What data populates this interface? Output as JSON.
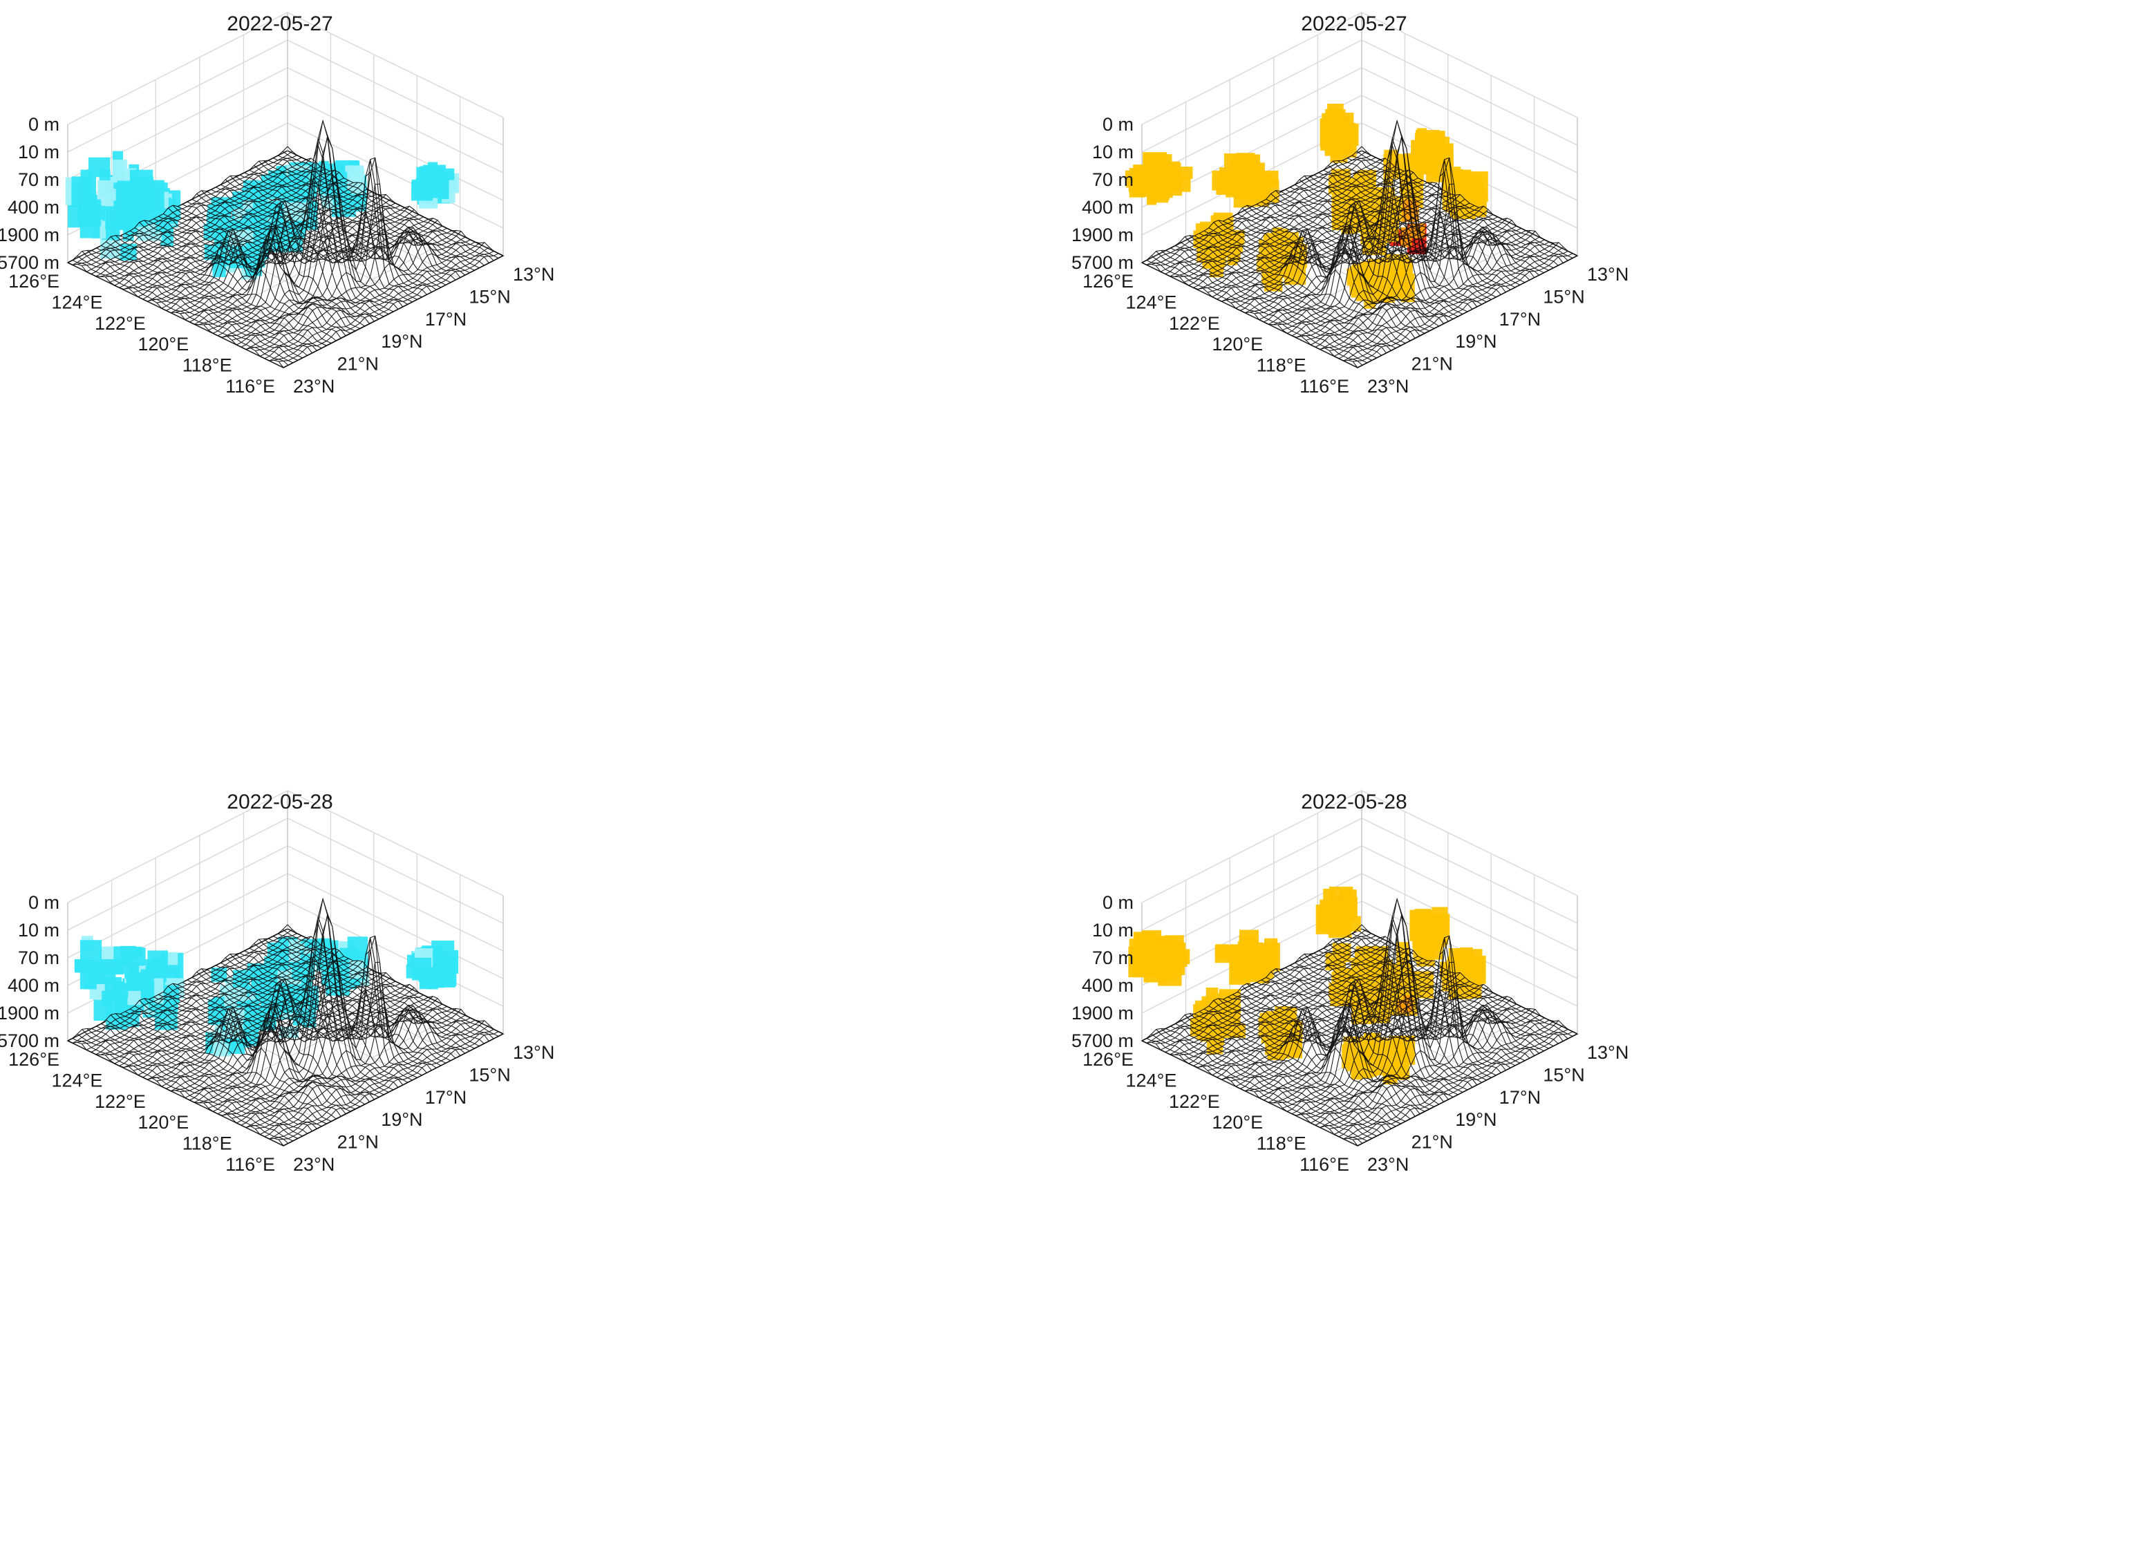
{
  "figure": {
    "background": "#ffffff"
  },
  "chart_data": [
    {
      "type": "3d-surface",
      "title": "2022-05-27",
      "z_ticks": [
        "0 m",
        "10 m",
        "70 m",
        "400 m",
        "1900 m",
        "5700 m"
      ],
      "lon_ticks": [
        "126°E",
        "124°E",
        "122°E",
        "120°E",
        "118°E",
        "116°E"
      ],
      "lat_ticks": [
        "13°N",
        "15°N",
        "17°N",
        "19°N",
        "21°N",
        "23°N"
      ],
      "lon_range": [
        116,
        126
      ],
      "lat_range": [
        13,
        23
      ],
      "grid": true,
      "surface_color": "#000000",
      "overlay": "cyan",
      "overlay_colors": [
        "#33e6f7",
        "#9ff2fb"
      ]
    },
    {
      "type": "3d-surface",
      "title": "2022-05-27",
      "z_ticks": [
        "0 m",
        "10 m",
        "70 m",
        "400 m",
        "1900 m",
        "5700 m"
      ],
      "lon_ticks": [
        "126°E",
        "124°E",
        "122°E",
        "120°E",
        "118°E",
        "116°E"
      ],
      "lat_ticks": [
        "13°N",
        "15°N",
        "17°N",
        "19°N",
        "21°N",
        "23°N"
      ],
      "lon_range": [
        116,
        126
      ],
      "lat_range": [
        13,
        23
      ],
      "grid": true,
      "surface_color": "#000000",
      "overlay": "orange",
      "overlay_colors": [
        "#ffc400",
        "#ff9a00",
        "#ee1c10"
      ]
    },
    {
      "type": "3d-surface",
      "title": "2022-05-28",
      "z_ticks": [
        "0 m",
        "10 m",
        "70 m",
        "400 m",
        "1900 m",
        "5700 m"
      ],
      "lon_ticks": [
        "126°E",
        "124°E",
        "122°E",
        "120°E",
        "118°E",
        "116°E"
      ],
      "lat_ticks": [
        "13°N",
        "15°N",
        "17°N",
        "19°N",
        "21°N",
        "23°N"
      ],
      "lon_range": [
        116,
        126
      ],
      "lat_range": [
        13,
        23
      ],
      "grid": true,
      "surface_color": "#000000",
      "overlay": "cyan",
      "overlay_colors": [
        "#33e6f7",
        "#9ff2fb"
      ]
    },
    {
      "type": "3d-surface",
      "title": "2022-05-28",
      "z_ticks": [
        "0 m",
        "10 m",
        "70 m",
        "400 m",
        "1900 m",
        "5700 m"
      ],
      "lon_ticks": [
        "126°E",
        "124°E",
        "122°E",
        "120°E",
        "118°E",
        "116°E"
      ],
      "lat_ticks": [
        "13°N",
        "15°N",
        "17°N",
        "19°N",
        "21°N",
        "23°N"
      ],
      "lon_range": [
        116,
        126
      ],
      "lat_range": [
        13,
        23
      ],
      "grid": true,
      "surface_color": "#000000",
      "overlay": "orange",
      "overlay_colors": [
        "#ffc400",
        "#ff9a00",
        "#ee1c10"
      ]
    }
  ]
}
